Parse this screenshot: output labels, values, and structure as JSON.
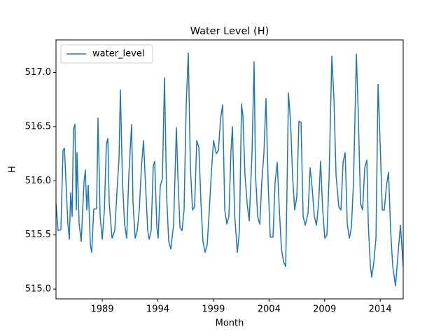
{
  "chart_data": {
    "type": "line",
    "title": "Water Level (H)",
    "x_label": "Month",
    "y_label": "H",
    "legend": "upper left",
    "xlim": [
      1984.84,
      2016.07
    ],
    "xticks": [
      1989,
      1994,
      1999,
      2004,
      2009,
      2014
    ],
    "ylim": [
      514.91,
      517.3
    ],
    "yticks": [
      {
        "value": 515,
        "label": "515.0"
      },
      515.5,
      {
        "value": 516,
        "label": "516.0"
      },
      516.5,
      {
        "value": 517,
        "label": "517.0"
      }
    ],
    "x": [
      1984.84,
      1985.03,
      1985.28,
      1985.47,
      1985.6,
      1985.91,
      1986.04,
      1986.16,
      1986.29,
      1986.41,
      1986.54,
      1986.67,
      1986.73,
      1986.92,
      1987.11,
      1987.36,
      1987.48,
      1987.61,
      1987.74,
      1987.93,
      1988.05,
      1988.24,
      1988.49,
      1988.62,
      1988.81,
      1989.0,
      1989.19,
      1989.37,
      1989.5,
      1989.63,
      1989.88,
      1990.13,
      1990.32,
      1990.51,
      1990.63,
      1990.82,
      1991.01,
      1991.2,
      1991.39,
      1991.64,
      1991.77,
      1991.96,
      1992.15,
      1992.33,
      1992.52,
      1992.71,
      1992.9,
      1993.09,
      1993.22,
      1993.4,
      1993.59,
      1993.72,
      1993.91,
      1994.03,
      1994.22,
      1994.41,
      1994.6,
      1994.79,
      1994.98,
      1995.17,
      1995.42,
      1995.67,
      1995.8,
      1995.99,
      1996.18,
      1996.36,
      1996.55,
      1996.74,
      1996.93,
      1997.12,
      1997.31,
      1997.5,
      1997.69,
      1997.88,
      1998.06,
      1998.25,
      1998.44,
      1998.63,
      1998.82,
      1999.01,
      1999.26,
      1999.45,
      1999.64,
      1999.83,
      2000.02,
      2000.21,
      2000.39,
      2000.58,
      2000.71,
      2000.9,
      2001.15,
      2001.34,
      2001.53,
      2001.65,
      2001.84,
      2002.03,
      2002.22,
      2002.47,
      2002.66,
      2002.79,
      2002.98,
      2003.17,
      2003.35,
      2003.54,
      2003.73,
      2003.92,
      2004.11,
      2004.36,
      2004.55,
      2004.74,
      2004.93,
      2005.12,
      2005.31,
      2005.5,
      2005.62,
      2005.75,
      2005.94,
      2006.13,
      2006.31,
      2006.5,
      2006.69,
      2006.88,
      2007.07,
      2007.26,
      2007.51,
      2007.7,
      2007.89,
      2008.08,
      2008.27,
      2008.46,
      2008.64,
      2008.83,
      2009.02,
      2009.21,
      2009.4,
      2009.65,
      2009.84,
      2010.03,
      2010.28,
      2010.47,
      2010.66,
      2010.85,
      2011.04,
      2011.23,
      2011.41,
      2011.6,
      2011.86,
      2012.04,
      2012.23,
      2012.42,
      2012.61,
      2012.8,
      2012.93,
      2013.12,
      2013.24,
      2013.43,
      2013.62,
      2013.81,
      2014.0,
      2014.19,
      2014.37,
      2014.56,
      2014.75,
      2014.94,
      2015.13,
      2015.38,
      2015.57,
      2015.82,
      2016.07
    ],
    "series": [
      {
        "name": "water_level",
        "color": "#1f77b4",
        "values": [
          515.79,
          515.54,
          515.55,
          516.28,
          516.3,
          515.6,
          515.46,
          515.89,
          515.67,
          516.47,
          516.52,
          515.73,
          516.26,
          515.6,
          515.44,
          515.99,
          516.1,
          515.73,
          515.96,
          515.41,
          515.34,
          515.74,
          515.74,
          516.58,
          515.67,
          515.46,
          515.73,
          516.34,
          516.39,
          515.79,
          515.47,
          515.54,
          515.89,
          516.21,
          516.84,
          515.99,
          515.6,
          515.47,
          516.05,
          516.52,
          515.79,
          515.47,
          515.54,
          515.73,
          516.12,
          516.37,
          515.95,
          515.54,
          515.46,
          515.54,
          516.14,
          516.18,
          515.57,
          515.47,
          515.95,
          516.02,
          516.95,
          515.86,
          515.44,
          515.37,
          515.6,
          516.49,
          516.05,
          515.57,
          515.54,
          515.73,
          516.7,
          517.18,
          516.12,
          515.73,
          515.76,
          516.37,
          516.31,
          515.79,
          515.44,
          515.34,
          515.41,
          515.73,
          516.08,
          516.37,
          516.25,
          516.28,
          516.57,
          516.7,
          515.73,
          515.6,
          515.67,
          516.28,
          516.5,
          515.7,
          515.34,
          515.54,
          516.71,
          516.6,
          516.05,
          515.79,
          515.63,
          516.25,
          517.1,
          516.05,
          515.67,
          515.6,
          515.99,
          516.25,
          516.76,
          515.99,
          515.48,
          515.48,
          515.99,
          516.17,
          515.73,
          515.37,
          515.25,
          515.21,
          515.92,
          516.81,
          516.54,
          516.02,
          515.73,
          515.85,
          516.55,
          516.54,
          515.67,
          515.59,
          515.7,
          516.12,
          515.92,
          515.67,
          515.59,
          515.79,
          516.18,
          515.73,
          515.47,
          515.5,
          516.02,
          517.15,
          516.76,
          516.05,
          515.76,
          515.73,
          516.17,
          516.26,
          515.6,
          515.47,
          515.57,
          515.99,
          517.17,
          516.57,
          515.79,
          515.73,
          516.12,
          516.19,
          515.6,
          515.21,
          515.11,
          515.25,
          515.47,
          516.89,
          516.34,
          515.73,
          515.73,
          515.95,
          516.08,
          515.54,
          515.21,
          515.03,
          515.28,
          515.59,
          515.21
        ]
      }
    ]
  }
}
